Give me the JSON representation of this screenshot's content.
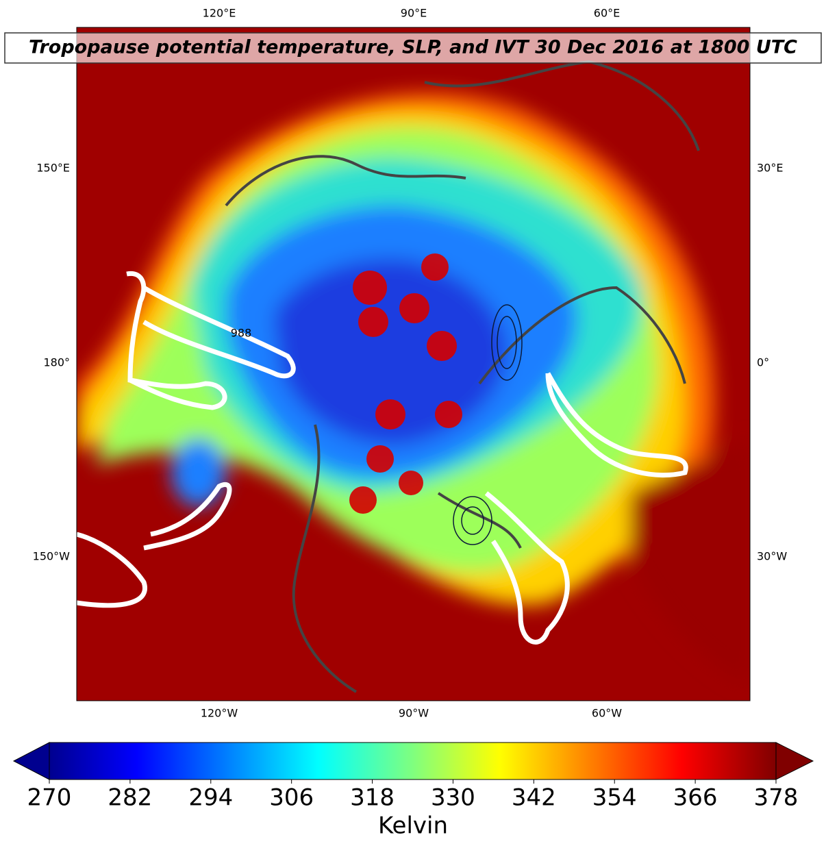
{
  "title": "Tropopause potential temperature, SLP, and IVT 30 Dec 2016 at 1800 UTC",
  "map": {
    "top_labels": [
      "120°E",
      "90°E",
      "60°E"
    ],
    "bottom_labels": [
      "120°W",
      "90°W",
      "60°W"
    ],
    "left_labels": [
      "150°E",
      "180°",
      "150°W"
    ],
    "right_labels": [
      "30°E",
      "0°",
      "30°W"
    ],
    "contour_label": "988"
  },
  "colorbar": {
    "label": "Kelvin",
    "lim": [
      270,
      378
    ],
    "ticks": [
      270,
      282,
      294,
      306,
      318,
      330,
      342,
      354,
      366,
      378
    ]
  }
}
